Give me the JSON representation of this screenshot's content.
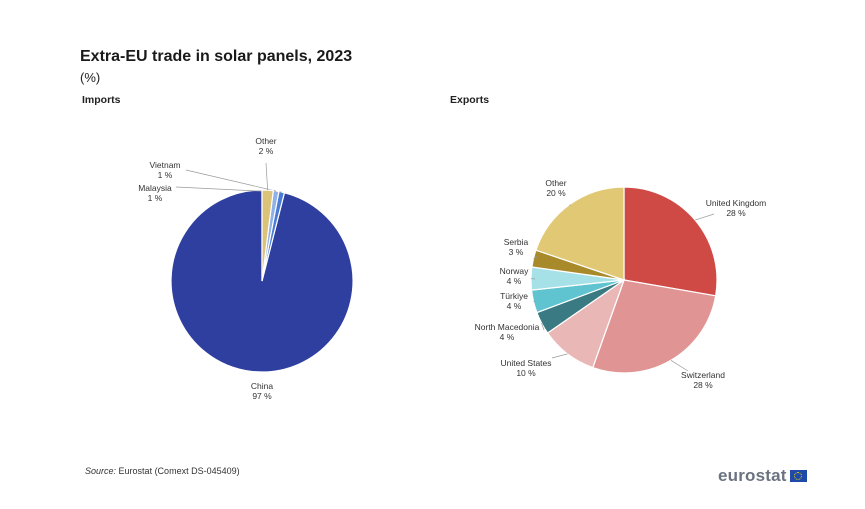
{
  "title": "Extra-EU trade in solar panels, 2023",
  "unit": "(%)",
  "source": {
    "label": "Source:",
    "text": "Eurostat (Comext DS-045409)"
  },
  "logo_text": "eurostat",
  "chart_data": [
    {
      "type": "pie",
      "subtitle": "Imports",
      "slices": [
        {
          "name": "China",
          "value": 97,
          "label": "97 %",
          "color": "#2e3fa0"
        },
        {
          "name": "Malaysia",
          "value": 1,
          "label": "1 %",
          "color": "#4a7bd6"
        },
        {
          "name": "Vietnam",
          "value": 1,
          "label": "1 %",
          "color": "#8fb1e8"
        },
        {
          "name": "Other",
          "value": 2,
          "label": "2 %",
          "color": "#dcc37a"
        }
      ]
    },
    {
      "type": "pie",
      "subtitle": "Exports",
      "slices": [
        {
          "name": "United Kingdom",
          "value": 28,
          "label": "28 %",
          "color": "#cf4a45"
        },
        {
          "name": "Switzerland",
          "value": 28,
          "label": "28 %",
          "color": "#e09494"
        },
        {
          "name": "United States",
          "value": 10,
          "label": "10 %",
          "color": "#eab7b7"
        },
        {
          "name": "North Macedonia",
          "value": 4,
          "label": "4 %",
          "color": "#3a7a82"
        },
        {
          "name": "Türkiye",
          "value": 4,
          "label": "4 %",
          "color": "#5fc4d0"
        },
        {
          "name": "Norway",
          "value": 4,
          "label": "4 %",
          "color": "#a6e1e8"
        },
        {
          "name": "Serbia",
          "value": 3,
          "label": "3 %",
          "color": "#a88a2a"
        },
        {
          "name": "Other",
          "value": 20,
          "label": "20 %",
          "color": "#e0c875"
        }
      ]
    }
  ]
}
